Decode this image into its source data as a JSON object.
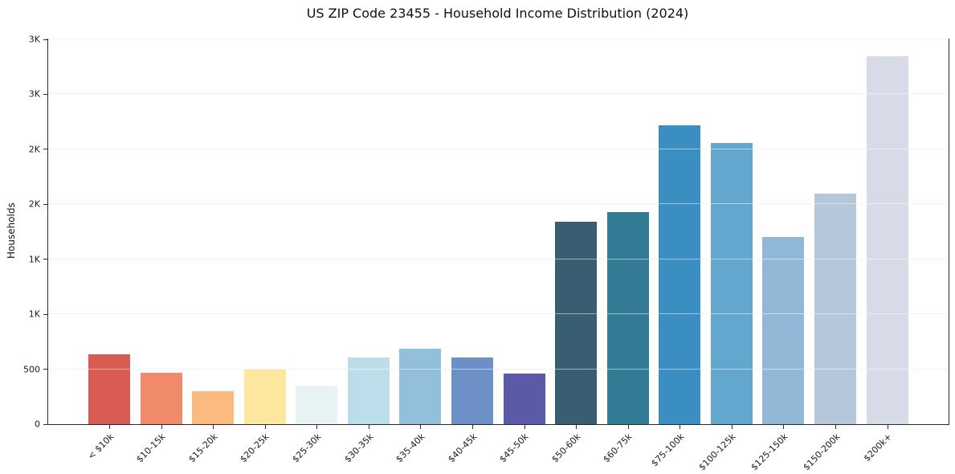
{
  "chart_data": {
    "type": "bar",
    "title": "US ZIP Code 23455 - Household Income Distribution (2024)",
    "xlabel": "",
    "ylabel": "Households",
    "categories": [
      "< $10k",
      "$10-15k",
      "$15-20k",
      "$20-25k",
      "$25-30k",
      "$30-35k",
      "$35-40k",
      "$40-45k",
      "$45-50k",
      "$50-60k",
      "$60-75k",
      "$75-100k",
      "$100-125k",
      "$125-150k",
      "$150-200k",
      "$200k+"
    ],
    "values": [
      635,
      470,
      300,
      500,
      350,
      610,
      690,
      610,
      460,
      1840,
      1930,
      2715,
      2555,
      1700,
      2100,
      3350
    ],
    "bar_colors": [
      "#d85c54",
      "#f08a6a",
      "#fcba7e",
      "#fde79e",
      "#e8f3f4",
      "#bcdeea",
      "#92c0dc",
      "#6c90c5",
      "#5b5aa9",
      "#3a5e71",
      "#337a95",
      "#3a8ec2",
      "#61a7ce",
      "#92b8d7",
      "#b6c7dc",
      "#d7dae7"
    ],
    "ylim": [
      0,
      3500
    ],
    "yticks": [
      {
        "value": 0,
        "label": "0"
      },
      {
        "value": 500,
        "label": "500"
      },
      {
        "value": 1000,
        "label": "1K"
      },
      {
        "value": 1500,
        "label": "1K"
      },
      {
        "value": 2000,
        "label": "2K"
      },
      {
        "value": 2500,
        "label": "2K"
      },
      {
        "value": 3000,
        "label": "3K"
      },
      {
        "value": 3500,
        "label": "3K"
      }
    ],
    "grid": "horizontal",
    "legend": "none",
    "background_color": "#ffffff"
  }
}
